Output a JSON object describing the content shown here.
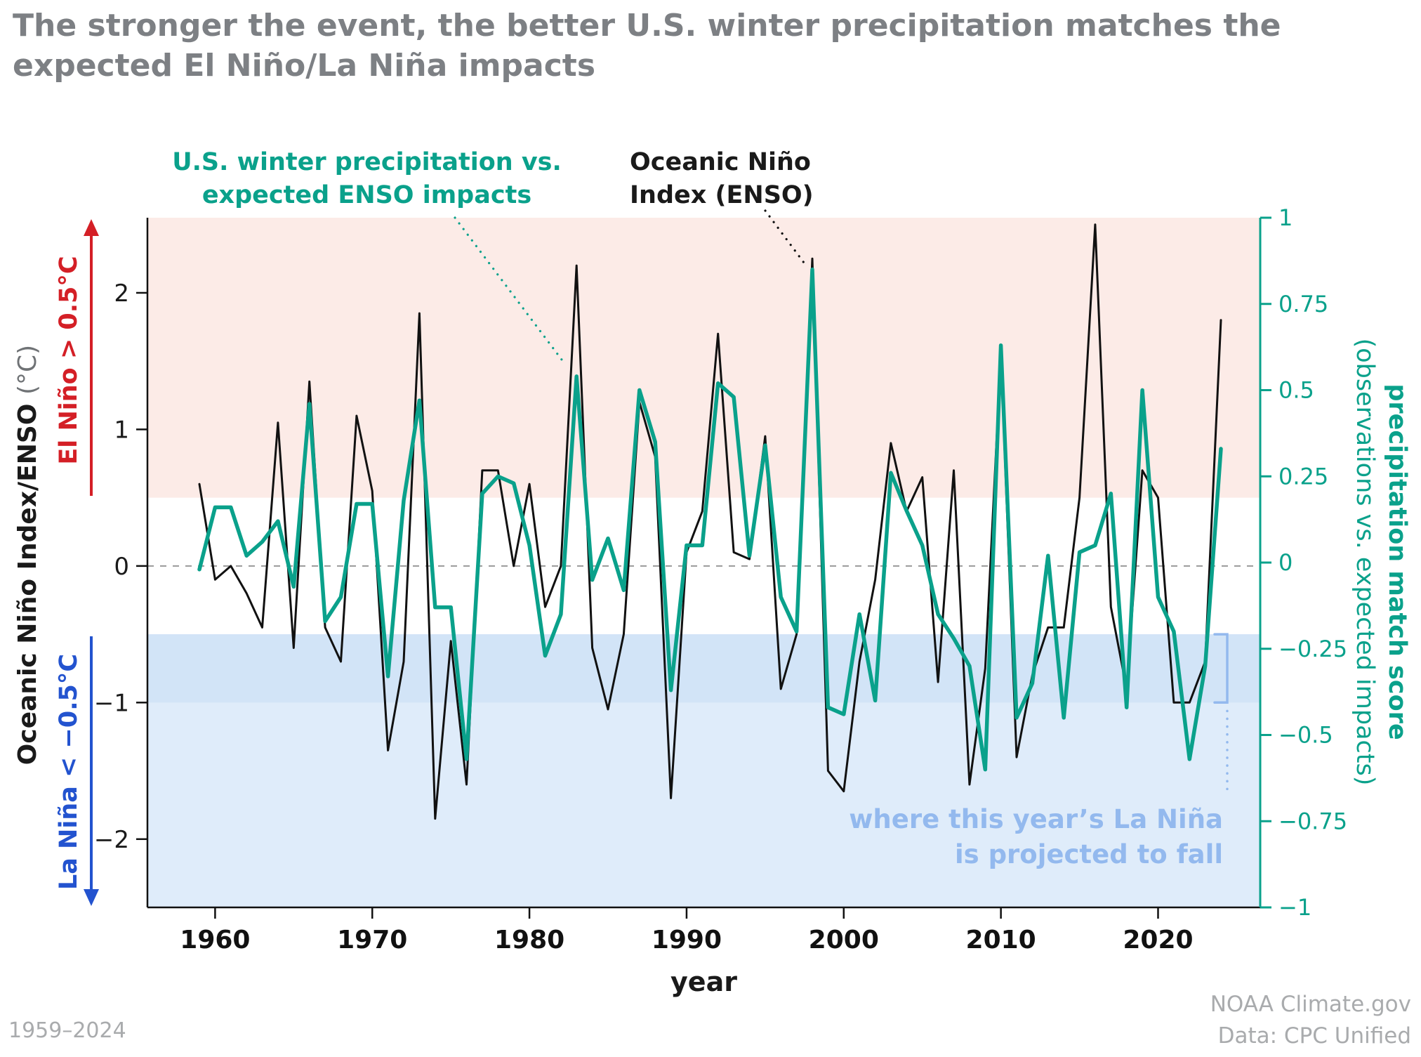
{
  "title": "The stronger the event, the better U.S. winter precipitation matches the\nexpected El Niño/La Niña impacts",
  "footer": {
    "range": "1959–2024",
    "credit": "NOAA Climate.gov",
    "data_source": "Data: CPC Unified"
  },
  "colors": {
    "teal": "#0aa18b",
    "black_line": "#111111",
    "red": "#d41f26",
    "blue": "#2353cf",
    "light_blue": "#93b9ee",
    "pink_bg": "#fcebe7",
    "blue_bg": "#dfecfa",
    "blue_band_bg": "#d2e4f7",
    "gray_title": "#7d8084",
    "gray_footer": "#a9abad",
    "zero_line_gray": "#999999"
  },
  "chart_data": {
    "type": "line",
    "x": [
      1959,
      1960,
      1961,
      1962,
      1963,
      1964,
      1965,
      1966,
      1967,
      1968,
      1969,
      1970,
      1971,
      1972,
      1973,
      1974,
      1975,
      1976,
      1977,
      1978,
      1979,
      1980,
      1981,
      1982,
      1983,
      1984,
      1985,
      1986,
      1987,
      1988,
      1989,
      1990,
      1991,
      1992,
      1993,
      1994,
      1995,
      1996,
      1997,
      1998,
      1999,
      2000,
      2001,
      2002,
      2003,
      2004,
      2005,
      2006,
      2007,
      2008,
      2009,
      2010,
      2011,
      2012,
      2013,
      2014,
      2015,
      2016,
      2017,
      2018,
      2019,
      2020,
      2021,
      2022,
      2023,
      2024
    ],
    "series": [
      {
        "name": "Oceanic Niño Index (ENSO)",
        "axis": "left",
        "color": "#111111",
        "values": [
          0.6,
          -0.1,
          0.0,
          -0.2,
          -0.45,
          1.05,
          -0.6,
          1.35,
          -0.45,
          -0.7,
          1.1,
          0.55,
          -1.35,
          -0.7,
          1.85,
          -1.85,
          -0.55,
          -1.6,
          0.7,
          0.7,
          0.0,
          0.6,
          -0.3,
          0.0,
          2.2,
          -0.6,
          -1.05,
          -0.5,
          1.2,
          0.8,
          -1.7,
          0.1,
          0.4,
          1.7,
          0.1,
          0.05,
          0.95,
          -0.9,
          -0.5,
          2.25,
          -1.5,
          -1.65,
          -0.7,
          -0.1,
          0.9,
          0.4,
          0.65,
          -0.85,
          0.7,
          -1.6,
          -0.75,
          1.55,
          -1.4,
          -0.8,
          -0.45,
          -0.45,
          0.5,
          2.5,
          -0.3,
          -0.9,
          0.7,
          0.5,
          -1.0,
          -1.0,
          -0.7,
          1.8
        ]
      },
      {
        "name": "U.S. winter precipitation vs. expected ENSO impacts",
        "axis": "right",
        "color": "#0aa18b",
        "values": [
          -0.02,
          0.16,
          0.16,
          0.02,
          0.06,
          0.12,
          -0.07,
          0.46,
          -0.17,
          -0.1,
          0.17,
          0.17,
          -0.33,
          0.18,
          0.47,
          -0.13,
          -0.13,
          -0.57,
          0.2,
          0.25,
          0.23,
          0.05,
          -0.27,
          -0.15,
          0.54,
          -0.05,
          0.07,
          -0.08,
          0.5,
          0.35,
          -0.37,
          0.05,
          0.05,
          0.52,
          0.48,
          0.02,
          0.34,
          -0.1,
          -0.2,
          0.85,
          -0.42,
          -0.44,
          -0.15,
          -0.4,
          0.26,
          0.15,
          0.05,
          -0.15,
          -0.22,
          -0.3,
          -0.6,
          0.63,
          -0.45,
          -0.35,
          0.02,
          -0.45,
          0.03,
          0.05,
          0.2,
          -0.42,
          0.5,
          -0.1,
          -0.2,
          -0.57,
          -0.3,
          0.33
        ]
      }
    ],
    "left_axis": {
      "label": "Oceanic Niño Index/ENSO",
      "units": "(°C)",
      "min": -2.5,
      "max": 2.55,
      "ticks": [
        2,
        1,
        0,
        -1,
        -2
      ]
    },
    "right_axis": {
      "label": "precipitation match score",
      "sublabel": "(observations vs. expected impacts)",
      "min": -1,
      "max": 1,
      "ticks": [
        1,
        0.75,
        0.5,
        0.25,
        0,
        -0.25,
        -0.5,
        -0.75,
        -1
      ]
    },
    "x_axis": {
      "label": "year",
      "ticks": [
        1960,
        1970,
        1980,
        1990,
        2000,
        2010,
        2020
      ]
    },
    "zero_line": 0,
    "regions": {
      "elnino": {
        "label": "El Niño > 0.5°C",
        "threshold": 0.5,
        "color": "#fcebe7"
      },
      "lanina": {
        "label": "La Niña < −0.5°C",
        "threshold": -0.5,
        "color": "#dfecfa"
      },
      "projection": {
        "label": "where this year’s La Niña\nis projected to fall",
        "range": [
          -1,
          -0.5
        ],
        "color": "#d2e4f7"
      }
    },
    "annotations": {
      "precip_callout": "U.S. winter precipitation vs.\nexpected ENSO impacts",
      "oni_callout": "Oceanic Niño\nIndex (ENSO)"
    }
  }
}
